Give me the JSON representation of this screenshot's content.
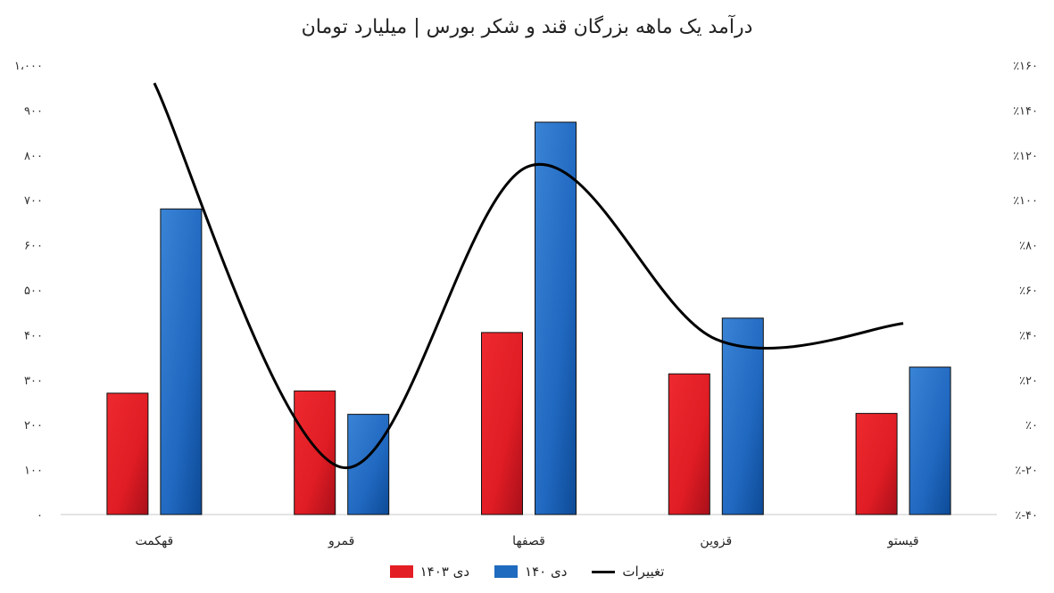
{
  "chart_data": {
    "type": "bar",
    "title": "درآمد یک ماهه بزرگان قند و شکر بورس | میلیارد تومان",
    "categories": [
      "قهکمت",
      "قمرو",
      "قصفها",
      "قزوین",
      "قیستو"
    ],
    "series": [
      {
        "name": "دی ۱۴۰۳",
        "type": "bar",
        "color": "#e31e24",
        "axis": "left",
        "values": [
          270,
          275,
          405,
          313,
          225
        ]
      },
      {
        "name": "دی ۱۴۰",
        "type": "bar",
        "color": "#1f6bbf",
        "axis": "left",
        "values": [
          680,
          223,
          873,
          437,
          328
        ]
      },
      {
        "name": "تغییرات",
        "type": "line",
        "color": "#000000",
        "axis": "right",
        "smooth": true,
        "values": [
          152,
          -19,
          115,
          38,
          45
        ]
      }
    ],
    "left_axis": {
      "ylim": [
        0,
        1000
      ],
      "ticks": [
        "۰",
        "۱۰۰",
        "۲۰۰",
        "۳۰۰",
        "۴۰۰",
        "۵۰۰",
        "۶۰۰",
        "۷۰۰",
        "۸۰۰",
        "۹۰۰",
        "۱،۰۰۰"
      ]
    },
    "right_axis": {
      "ylim": [
        -40,
        160
      ],
      "ticks": [
        "٪-۴۰",
        "٪-۲۰",
        "٪۰",
        "٪۲۰",
        "٪۴۰",
        "٪۶۰",
        "٪۸۰",
        "٪۱۰۰",
        "٪۱۲۰",
        "٪۱۴۰",
        "٪۱۶۰"
      ]
    },
    "grid": false,
    "legend_position": "bottom"
  }
}
